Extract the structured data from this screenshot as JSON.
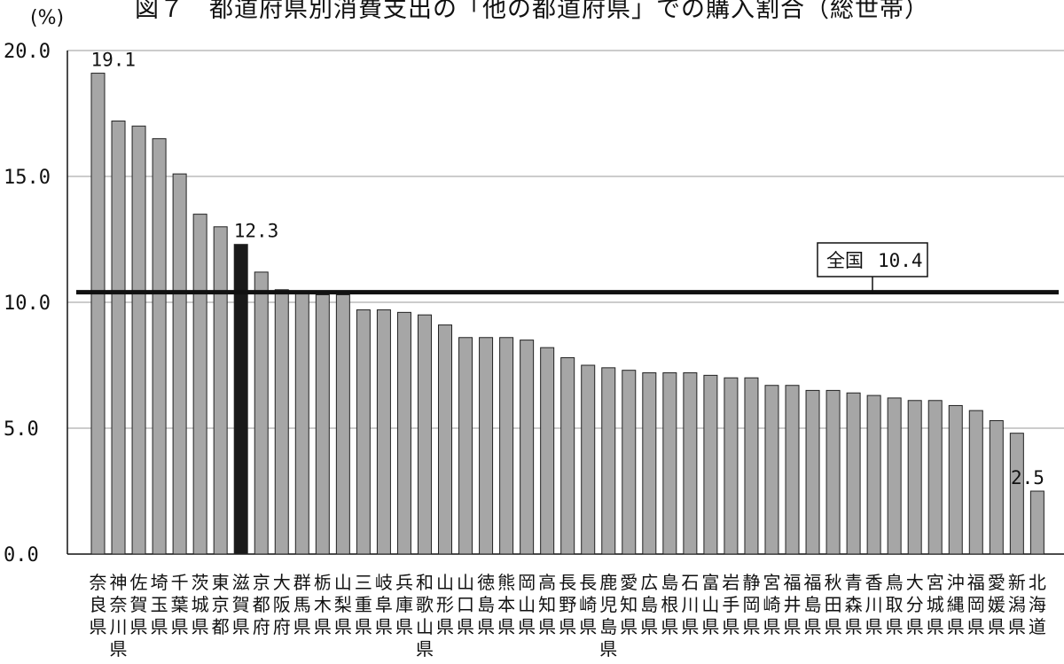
{
  "chart_data": {
    "type": "bar",
    "title": "図７　都道府県別消費支出の「他の都道府県」での購入割合（総世帯）",
    "ylabel": "(%)",
    "ylim": [
      0,
      20
    ],
    "yticks": [
      "0.0",
      "5.0",
      "10.0",
      "15.0",
      "20.0"
    ],
    "grid": true,
    "categories": [
      "奈良県",
      "神奈川県",
      "佐賀県",
      "埼玉県",
      "千葉県",
      "茨城県",
      "東京都",
      "滋賀県",
      "京都府",
      "大阪府",
      "群馬県",
      "栃木県",
      "山梨県",
      "三重県",
      "岐阜県",
      "兵庫県",
      "和歌山県",
      "山形県",
      "山口県",
      "徳島県",
      "熊本県",
      "岡山県",
      "高知県",
      "長野県",
      "長崎県",
      "鹿児島県",
      "愛知県",
      "広島県",
      "島根県",
      "石川県",
      "富山県",
      "岩手県",
      "静岡県",
      "宮崎県",
      "福井県",
      "福島県",
      "秋田県",
      "青森県",
      "香川県",
      "鳥取県",
      "大分県",
      "宮城県",
      "沖縄県",
      "福岡県",
      "愛媛県",
      "新潟県",
      "北海道"
    ],
    "values": [
      19.1,
      17.2,
      17.0,
      16.5,
      15.1,
      13.5,
      13.0,
      12.3,
      11.2,
      10.5,
      10.4,
      10.3,
      10.3,
      9.7,
      9.7,
      9.6,
      9.5,
      9.1,
      8.6,
      8.6,
      8.6,
      8.5,
      8.2,
      7.8,
      7.5,
      7.4,
      7.3,
      7.2,
      7.2,
      7.2,
      7.1,
      7.0,
      7.0,
      6.7,
      6.7,
      6.5,
      6.5,
      6.4,
      6.3,
      6.2,
      6.1,
      6.1,
      5.9,
      5.7,
      5.3,
      4.8,
      2.5
    ],
    "bar_color": "#a6a6a6",
    "highlight_color": "#1a1a1a",
    "highlight_category": "滋賀県",
    "data_labels": [
      {
        "category": "奈良県",
        "text": "19.1"
      },
      {
        "category": "滋賀県",
        "text": "12.3"
      },
      {
        "category": "北海道",
        "text": "2.5"
      }
    ],
    "reference_line": {
      "label": "全国",
      "value": 10.4,
      "value_text": "10.4"
    }
  }
}
